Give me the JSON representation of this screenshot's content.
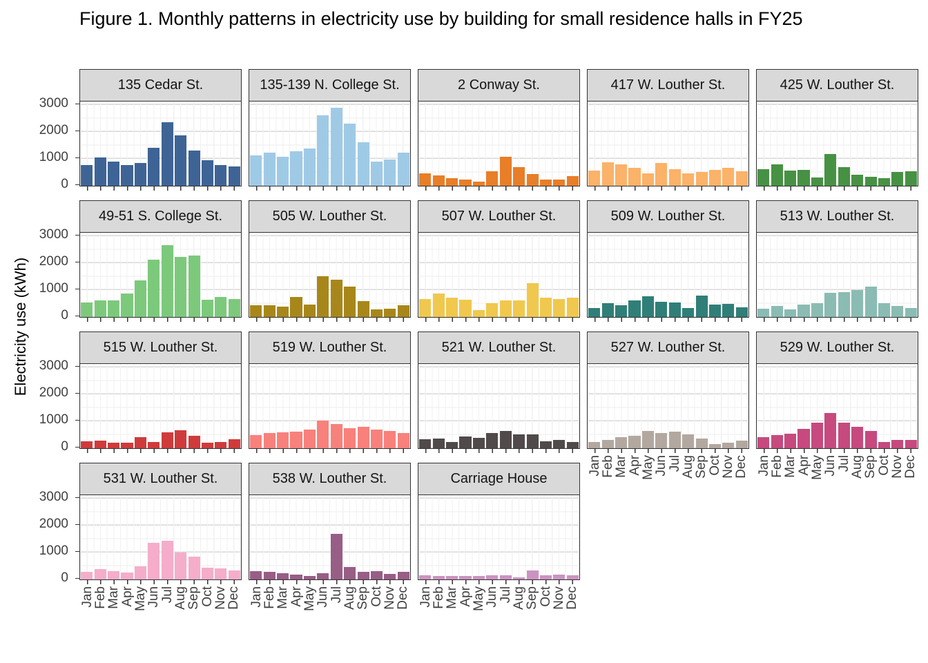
{
  "chart_data": {
    "type": "bar",
    "faceted": true,
    "title": "Figure 1. Monthly patterns in electricity use by building for small residence halls in FY25",
    "ylabel": "Electricity use (kWh)",
    "xlabel": "",
    "categories": [
      "Jan",
      "Feb",
      "Mar",
      "Apr",
      "May",
      "Jun",
      "Jul",
      "Aug",
      "Sep",
      "Oct",
      "Nov",
      "Dec"
    ],
    "y_ticks": [
      0,
      1000,
      2000,
      3000
    ],
    "ylim": [
      0,
      3100
    ],
    "legend": "none",
    "grid": "on",
    "facet_layout": {
      "rows": 4,
      "columns": 5
    },
    "style": {
      "strip_background": "#D9D9D9",
      "panel_border": "#333333",
      "major_gridline": "#D8D8D8",
      "minor_gridline": "#ECECEC",
      "axis_text": "#404040",
      "background": "#FFFFFF"
    },
    "facets": [
      {
        "name": "135 Cedar St.",
        "color": "#3E6495",
        "row": 1,
        "col": 1,
        "show_y_axis": true,
        "show_x_axis": false,
        "values": [
          760,
          1030,
          890,
          760,
          840,
          1390,
          2350,
          1860,
          1290,
          940,
          760,
          720
        ]
      },
      {
        "name": "135-139 N. College St.",
        "color": "#9FCAE6",
        "row": 1,
        "col": 2,
        "show_y_axis": false,
        "show_x_axis": false,
        "values": [
          1130,
          1220,
          1080,
          1260,
          1370,
          2600,
          2880,
          2280,
          1590,
          890,
          960,
          1220
        ]
      },
      {
        "name": "2 Conway St.",
        "color": "#E87E28",
        "row": 1,
        "col": 3,
        "show_y_axis": false,
        "show_x_axis": false,
        "values": [
          470,
          390,
          270,
          240,
          150,
          530,
          1060,
          690,
          420,
          230,
          240,
          350
        ]
      },
      {
        "name": "417 W. Louther St.",
        "color": "#FBB269",
        "row": 1,
        "col": 4,
        "show_y_axis": false,
        "show_x_axis": false,
        "values": [
          550,
          860,
          800,
          670,
          470,
          850,
          600,
          460,
          510,
          590,
          650,
          540
        ]
      },
      {
        "name": "425 W. Louther St.",
        "color": "#479144",
        "row": 1,
        "col": 5,
        "show_y_axis": false,
        "show_x_axis": false,
        "values": [
          600,
          780,
          570,
          580,
          310,
          1180,
          690,
          410,
          330,
          290,
          500,
          530
        ]
      },
      {
        "name": "49-51 S. College St.",
        "color": "#7CC97C",
        "row": 2,
        "col": 1,
        "show_y_axis": true,
        "show_x_axis": false,
        "values": [
          540,
          620,
          600,
          870,
          1340,
          2110,
          2640,
          2220,
          2270,
          640,
          740,
          670
        ]
      },
      {
        "name": "505 W. Louther St.",
        "color": "#A8871A",
        "row": 2,
        "col": 2,
        "show_y_axis": false,
        "show_x_axis": false,
        "values": [
          440,
          440,
          380,
          740,
          470,
          1500,
          1360,
          1110,
          590,
          280,
          310,
          430
        ]
      },
      {
        "name": "507 W. Louther St.",
        "color": "#F0C84E",
        "row": 2,
        "col": 3,
        "show_y_axis": false,
        "show_x_axis": false,
        "values": [
          660,
          860,
          700,
          640,
          260,
          510,
          610,
          610,
          1250,
          710,
          670,
          710
        ]
      },
      {
        "name": "509 W. Louther St.",
        "color": "#2F7F78",
        "row": 2,
        "col": 4,
        "show_y_axis": false,
        "show_x_axis": false,
        "values": [
          320,
          520,
          440,
          610,
          770,
          560,
          530,
          330,
          800,
          460,
          490,
          350
        ]
      },
      {
        "name": "513 W. Louther St.",
        "color": "#8ABCB3",
        "row": 2,
        "col": 5,
        "show_y_axis": false,
        "show_x_axis": false,
        "values": [
          300,
          410,
          280,
          470,
          520,
          900,
          910,
          1000,
          1110,
          500,
          410,
          320
        ]
      },
      {
        "name": "515 W. Louther St.",
        "color": "#CF3B3B",
        "row": 3,
        "col": 1,
        "show_y_axis": true,
        "show_x_axis": false,
        "values": [
          250,
          280,
          200,
          210,
          400,
          220,
          590,
          650,
          470,
          210,
          240,
          330
        ]
      },
      {
        "name": "519 W. Louther St.",
        "color": "#F8817C",
        "row": 3,
        "col": 2,
        "show_y_axis": false,
        "show_x_axis": false,
        "values": [
          490,
          570,
          580,
          610,
          680,
          1020,
          900,
          730,
          780,
          680,
          630,
          560
        ]
      },
      {
        "name": "521 W. Louther St.",
        "color": "#514A4A",
        "row": 3,
        "col": 3,
        "show_y_axis": false,
        "show_x_axis": false,
        "values": [
          330,
          350,
          240,
          440,
          390,
          560,
          630,
          510,
          500,
          260,
          300,
          240
        ]
      },
      {
        "name": "527 W. Louther St.",
        "color": "#B3A89F",
        "row": 3,
        "col": 4,
        "show_y_axis": false,
        "show_x_axis": true,
        "values": [
          230,
          310,
          400,
          460,
          630,
          550,
          600,
          510,
          360,
          150,
          210,
          280
        ]
      },
      {
        "name": "529 W. Louther St.",
        "color": "#C64A7E",
        "row": 3,
        "col": 5,
        "show_y_axis": false,
        "show_x_axis": true,
        "values": [
          400,
          480,
          540,
          720,
          930,
          1300,
          930,
          780,
          640,
          240,
          310,
          310
        ]
      },
      {
        "name": "531 W. Louther St.",
        "color": "#F5ADCA",
        "row": 4,
        "col": 1,
        "show_y_axis": true,
        "show_x_axis": true,
        "values": [
          290,
          380,
          300,
          260,
          490,
          1340,
          1430,
          980,
          830,
          420,
          400,
          330
        ]
      },
      {
        "name": "538 W. Louther St.",
        "color": "#985E86",
        "row": 4,
        "col": 2,
        "show_y_axis": false,
        "show_x_axis": true,
        "values": [
          310,
          280,
          230,
          180,
          140,
          240,
          1670,
          460,
          280,
          310,
          210,
          290
        ]
      },
      {
        "name": "Carriage House",
        "color": "#CC93C1",
        "row": 4,
        "col": 3,
        "show_y_axis": false,
        "show_x_axis": true,
        "values": [
          160,
          140,
          120,
          140,
          130,
          150,
          160,
          80,
          330,
          150,
          170,
          160
        ]
      }
    ]
  }
}
